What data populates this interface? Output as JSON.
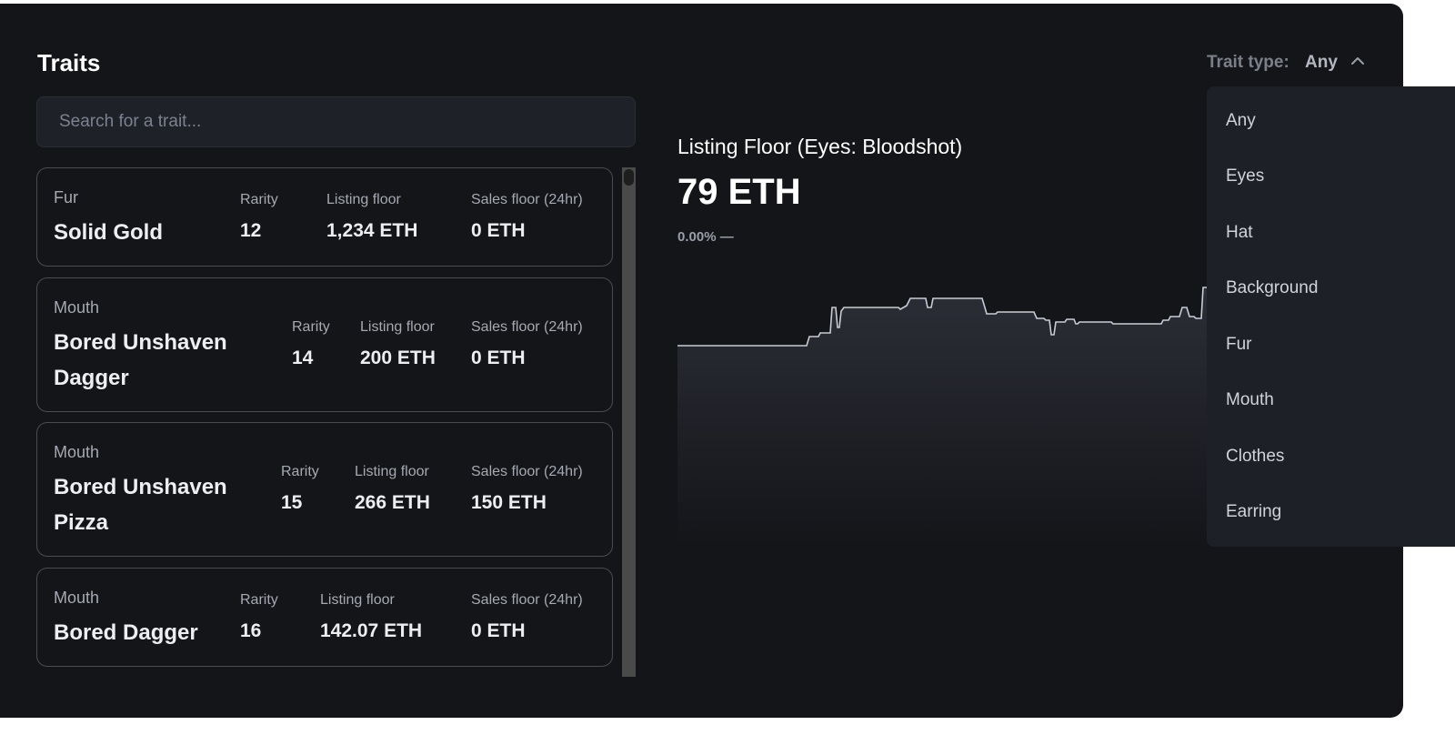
{
  "header": {
    "title": "Traits"
  },
  "search": {
    "placeholder": "Search for a trait..."
  },
  "columns": {
    "rarity": "Rarity",
    "listing_floor": "Listing floor",
    "sales_floor": "Sales floor (24hr)"
  },
  "traits": [
    {
      "category": "Fur",
      "name_lines": [
        "Solid Gold"
      ],
      "rarity": "12",
      "listing_floor": "1,234 ETH",
      "sales_floor": "0 ETH"
    },
    {
      "category": "Mouth",
      "name_lines": [
        "Bored Unshaven",
        "Dagger"
      ],
      "rarity": "14",
      "listing_floor": "200 ETH",
      "sales_floor": "0 ETH"
    },
    {
      "category": "Mouth",
      "name_lines": [
        "Bored Unshaven",
        "Pizza"
      ],
      "rarity": "15",
      "listing_floor": "266 ETH",
      "sales_floor": "150 ETH"
    },
    {
      "category": "Mouth",
      "name_lines": [
        "Bored Dagger"
      ],
      "rarity": "16",
      "listing_floor": "142.07 ETH",
      "sales_floor": "0 ETH"
    }
  ],
  "chart": {
    "title": "Listing Floor (Eyes: Bloodshot)",
    "value": "79 ETH",
    "change": "0.00% —",
    "line_color": "#c9ccd4",
    "fill_color": "#2a2c35"
  },
  "filter": {
    "label": "Trait type:",
    "value": "Any",
    "options": [
      "Any",
      "Eyes",
      "Hat",
      "Background",
      "Fur",
      "Mouth",
      "Clothes",
      "Earring"
    ]
  }
}
